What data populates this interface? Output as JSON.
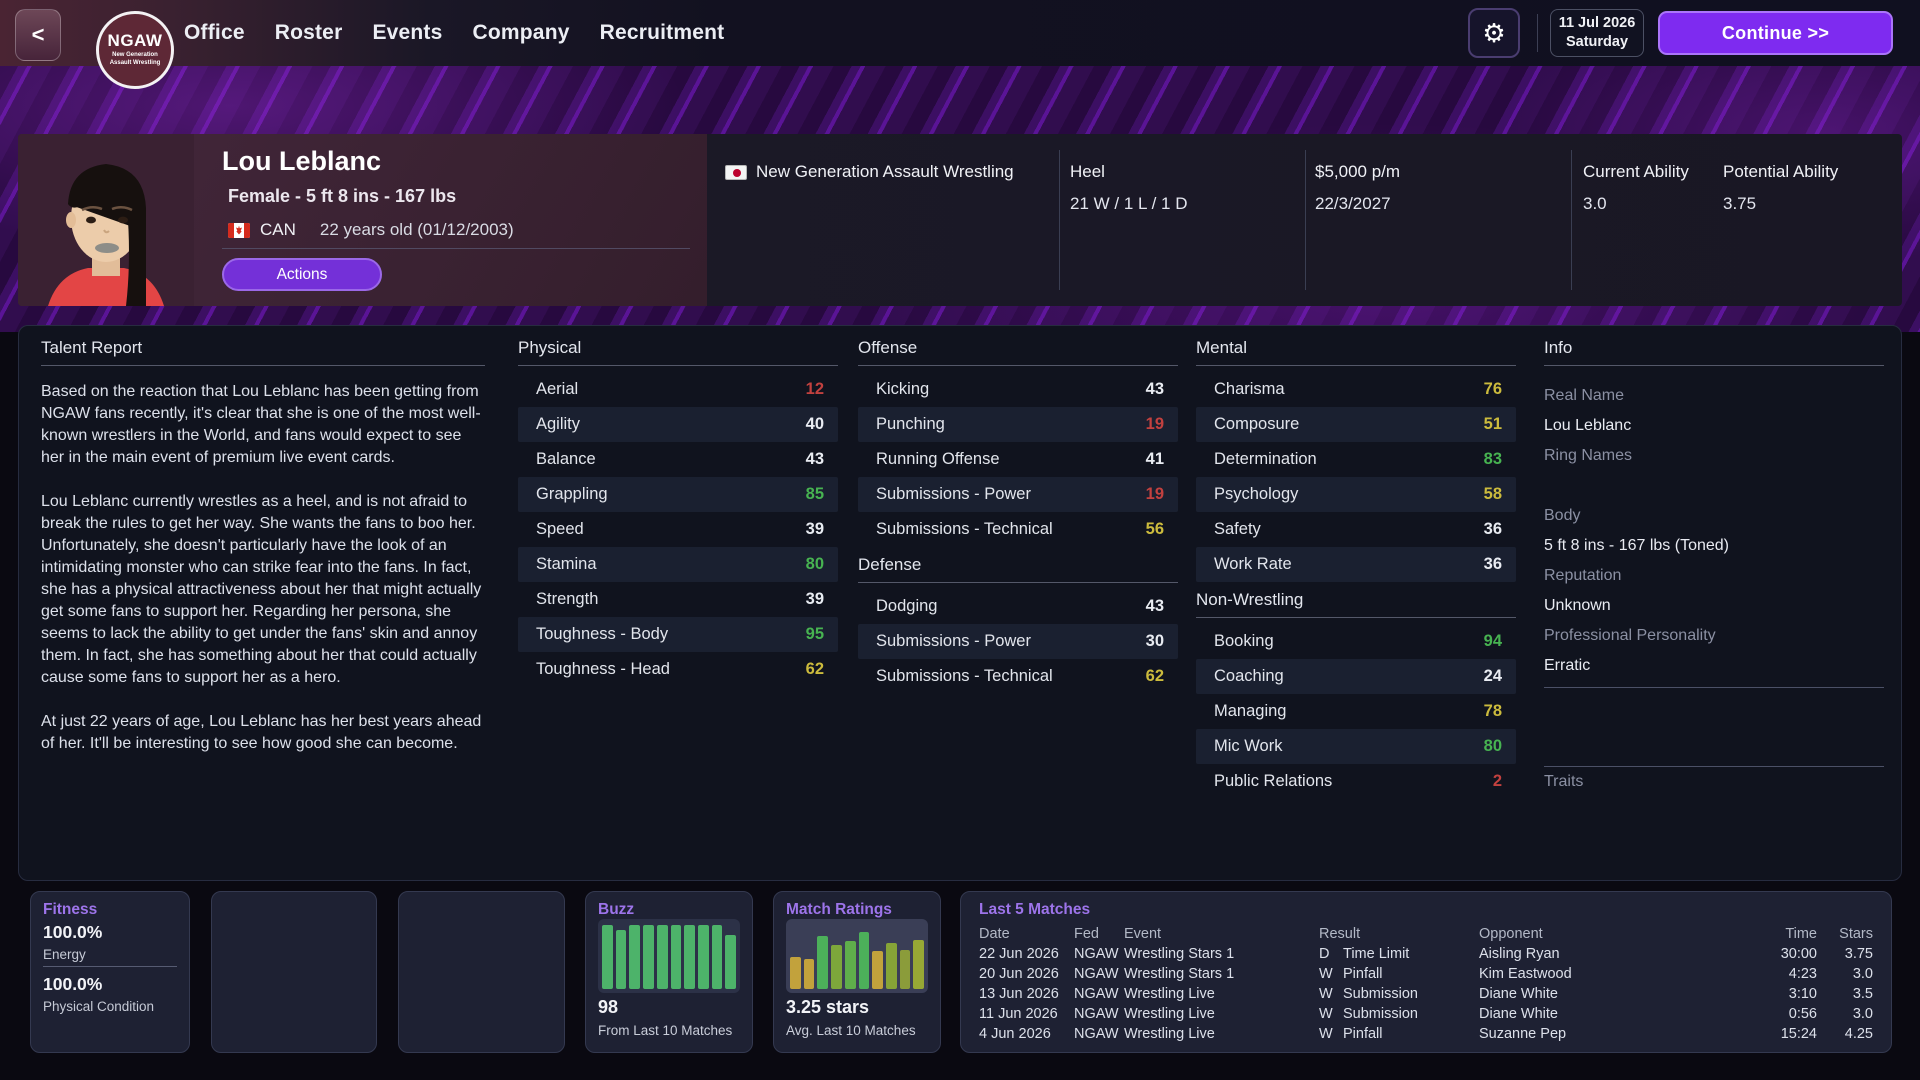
{
  "topbar": {
    "back_label": "<",
    "logo": {
      "abbr": "NGAW",
      "line1": "New Generation",
      "line2": "Assault Wrestling"
    },
    "nav": [
      "Office",
      "Roster",
      "Events",
      "Company",
      "Recruitment"
    ],
    "gear_icon": "gear",
    "date_line1": "11 Jul 2026",
    "date_line2": "Saturday",
    "continue_label": "Continue >>"
  },
  "profile": {
    "name": "Lou Leblanc",
    "physique": "Female - 5 ft 8 ins - 167 lbs",
    "nationality_code": "CAN",
    "age": "22 years old (01/12/2003)",
    "actions_label": "Actions",
    "company": "New Generation Assault Wrestling",
    "disposition": "Heel",
    "record": "21 W / 1 L / 1 D",
    "salary": "$5,000 p/m",
    "contract_date": "22/3/2027",
    "current_ability_label": "Current Ability",
    "current_ability": "3.0",
    "potential_ability_label": "Potential Ability",
    "potential_ability": "3.75"
  },
  "talent_report": {
    "title": "Talent Report",
    "paragraphs": [
      "Based on the reaction that Lou Leblanc has been getting from NGAW fans recently, it's clear that she is one of the most well-known wrestlers in the World, and fans would expect to see her in the main event of premium live event cards.",
      "Lou Leblanc currently wrestles as a heel, and is not afraid to break the rules to get her way. She wants the fans to boo her. Unfortunately, she doesn't particularly have the look of an intimidating monster who can strike fear into the fans. In fact, she has a physical attractiveness about her that might actually get some fans to support her. Regarding her persona, she seems to lack the ability to get under the fans' skin and annoy them. In fact, she has something about her that could actually cause some fans to support her as a hero.",
      "At just 22 years of age, Lou Leblanc has her best years ahead of her. It'll be interesting to see how good she can become."
    ]
  },
  "stats": {
    "columns": [
      {
        "sections": [
          {
            "title": "Physical",
            "rows": [
              [
                "Aerial",
                12,
                "red"
              ],
              [
                "Agility",
                40,
                "white"
              ],
              [
                "Balance",
                43,
                "white"
              ],
              [
                "Grappling",
                85,
                "green"
              ],
              [
                "Speed",
                39,
                "white"
              ],
              [
                "Stamina",
                80,
                "green"
              ],
              [
                "Strength",
                39,
                "white"
              ],
              [
                "Toughness - Body",
                95,
                "green"
              ],
              [
                "Toughness - Head",
                62,
                "yellow"
              ]
            ]
          }
        ]
      },
      {
        "sections": [
          {
            "title": "Offense",
            "rows": [
              [
                "Kicking",
                43,
                "white"
              ],
              [
                "Punching",
                19,
                "red"
              ],
              [
                "Running Offense",
                41,
                "white"
              ],
              [
                "Submissions - Power",
                19,
                "red"
              ],
              [
                "Submissions - Technical",
                56,
                "yellow"
              ]
            ]
          },
          {
            "title": "Defense",
            "rows": [
              [
                "Dodging",
                43,
                "white"
              ],
              [
                "Submissions - Power",
                30,
                "white"
              ],
              [
                "Submissions - Technical",
                62,
                "yellow"
              ]
            ]
          }
        ]
      },
      {
        "sections": [
          {
            "title": "Mental",
            "rows": [
              [
                "Charisma",
                76,
                "yellow"
              ],
              [
                "Composure",
                51,
                "yellow"
              ],
              [
                "Determination",
                83,
                "green"
              ],
              [
                "Psychology",
                58,
                "yellow"
              ],
              [
                "Safety",
                36,
                "white"
              ],
              [
                "Work Rate",
                36,
                "white"
              ]
            ]
          },
          {
            "title": "Non-Wrestling",
            "rows": [
              [
                "Booking",
                94,
                "green"
              ],
              [
                "Coaching",
                24,
                "white"
              ],
              [
                "Managing",
                78,
                "yellow"
              ],
              [
                "Mic Work",
                80,
                "green"
              ],
              [
                "Public Relations",
                2,
                "red"
              ]
            ]
          }
        ]
      }
    ]
  },
  "info": {
    "title": "Info",
    "items": [
      {
        "t": "label",
        "v": "Real Name"
      },
      {
        "t": "value",
        "v": "Lou Leblanc"
      },
      {
        "t": "label",
        "v": "Ring Names"
      },
      {
        "t": "blank",
        "v": ""
      },
      {
        "t": "label",
        "v": "Body"
      },
      {
        "t": "value",
        "v": "5 ft 8 ins - 167 lbs (Toned)"
      },
      {
        "t": "label",
        "v": "Reputation"
      },
      {
        "t": "value",
        "v": "Unknown"
      },
      {
        "t": "label",
        "v": "Professional Personality"
      },
      {
        "t": "value",
        "v": "Erratic"
      },
      {
        "t": "hr"
      },
      {
        "t": "gap"
      },
      {
        "t": "hr"
      },
      {
        "t": "label",
        "v": "Traits"
      }
    ]
  },
  "fitness": {
    "title": "Fitness",
    "energy_value": "100.0%",
    "energy_label": "Energy",
    "condition_value": "100.0%",
    "condition_label": "Physical Condition"
  },
  "buzz": {
    "title": "Buzz",
    "value": "98",
    "caption": "From Last 10 Matches",
    "bar_heights_pct": [
      97,
      90,
      97,
      97,
      97,
      97,
      97,
      97,
      97,
      82
    ]
  },
  "match_ratings": {
    "title": "Match Ratings",
    "value": "3.25 stars",
    "caption": "Avg. Last 10 Matches",
    "bars": [
      {
        "pct": 48,
        "color": "#c2a23c"
      },
      {
        "pct": 46,
        "color": "#c2a23c"
      },
      {
        "pct": 80,
        "color": "#4cb05a"
      },
      {
        "pct": 66,
        "color": "#7da73b"
      },
      {
        "pct": 72,
        "color": "#5fae4b"
      },
      {
        "pct": 86,
        "color": "#4cb05a"
      },
      {
        "pct": 57,
        "color": "#c2a23c"
      },
      {
        "pct": 70,
        "color": "#86a437"
      },
      {
        "pct": 59,
        "color": "#8b9c3a"
      },
      {
        "pct": 74,
        "color": "#97a835"
      }
    ]
  },
  "last_matches": {
    "title": "Last 5 Matches",
    "headers": [
      "Date",
      "Fed",
      "Event",
      "Result",
      "Opponent",
      "Time",
      "Stars"
    ],
    "rows": [
      {
        "date": "22 Jun 2026",
        "fed": "NGAW",
        "event": "Wrestling Stars 1",
        "result_letter": "D",
        "result_method": "Time Limit",
        "opponent": "Aisling Ryan",
        "time": "30:00",
        "stars": "3.75"
      },
      {
        "date": "20 Jun 2026",
        "fed": "NGAW",
        "event": "Wrestling Stars 1",
        "result_letter": "W",
        "result_method": "Pinfall",
        "opponent": "Kim Eastwood",
        "time": "4:23",
        "stars": "3.0"
      },
      {
        "date": "13 Jun 2026",
        "fed": "NGAW",
        "event": "Wrestling Live",
        "result_letter": "W",
        "result_method": "Submission",
        "opponent": "Diane White",
        "time": "3:10",
        "stars": "3.5"
      },
      {
        "date": "11 Jun 2026",
        "fed": "NGAW",
        "event": "Wrestling Live",
        "result_letter": "W",
        "result_method": "Submission",
        "opponent": "Diane White",
        "time": "0:56",
        "stars": "3.0"
      },
      {
        "date": "4 Jun 2026",
        "fed": "NGAW",
        "event": "Wrestling Live",
        "result_letter": "W",
        "result_method": "Pinfall",
        "opponent": "Suzanne Pep",
        "time": "15:24",
        "stars": "4.25"
      }
    ]
  },
  "colors": {
    "accent_purple": "#7e2bf0",
    "actions_purple": "#7430d8",
    "panel_title_purple": "#9d74ea",
    "tier_red": "#c2413f",
    "tier_white": "#e9ecf2",
    "tier_yellow": "#ccbb3d",
    "tier_green": "#47b351",
    "buzz_bar_green": "#4db36a",
    "maroon_header": "#3e2433"
  }
}
